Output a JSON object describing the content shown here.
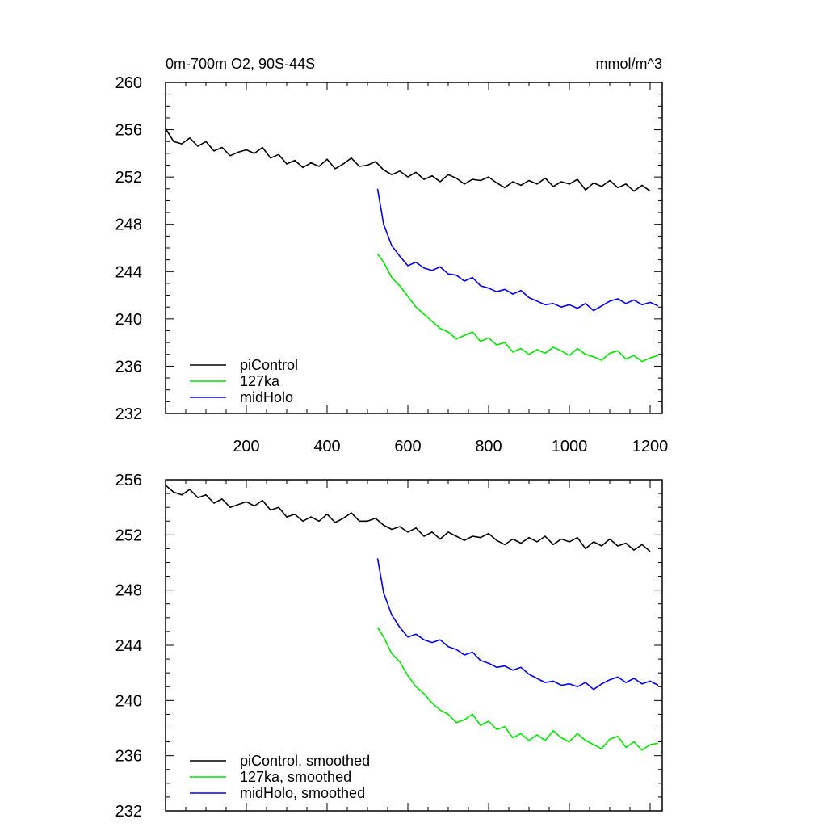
{
  "chart_data": [
    {
      "type": "line",
      "title_left": "0m-700m O2, 90S-44S",
      "title_right": "mmol/m^3",
      "xlabel": "",
      "ylabel": "",
      "xlim": [
        0,
        1230
      ],
      "ylim": [
        232,
        260
      ],
      "x_ticks": [
        200,
        400,
        600,
        800,
        1000,
        1200
      ],
      "x_tick_labels": [
        "200",
        "400",
        "600",
        "800",
        "1000",
        "1200"
      ],
      "y_ticks": [
        232,
        236,
        240,
        244,
        248,
        252,
        256,
        260
      ],
      "y_tick_labels": [
        "232",
        "236",
        "240",
        "244",
        "248",
        "252",
        "256",
        "260"
      ],
      "grid": false,
      "legend_position": "bottom-left",
      "series": [
        {
          "name": "piControl",
          "color": "#000000",
          "x": [
            0,
            20,
            40,
            60,
            80,
            100,
            120,
            140,
            160,
            180,
            200,
            220,
            240,
            260,
            280,
            300,
            320,
            340,
            360,
            380,
            400,
            420,
            440,
            460,
            480,
            500,
            520,
            540,
            560,
            580,
            600,
            620,
            640,
            660,
            680,
            700,
            720,
            740,
            760,
            780,
            800,
            820,
            840,
            860,
            880,
            900,
            920,
            940,
            960,
            980,
            1000,
            1020,
            1040,
            1060,
            1080,
            1100,
            1120,
            1140,
            1160,
            1180,
            1200
          ],
          "values": [
            256.1,
            255.0,
            254.8,
            255.3,
            254.6,
            255.0,
            254.2,
            254.5,
            253.8,
            254.1,
            254.3,
            254.0,
            254.5,
            253.6,
            253.9,
            253.1,
            253.4,
            252.8,
            253.2,
            252.9,
            253.5,
            252.7,
            253.1,
            253.6,
            252.9,
            253.0,
            253.3,
            252.6,
            252.2,
            252.5,
            252.0,
            252.4,
            251.8,
            252.1,
            251.6,
            252.2,
            251.9,
            251.4,
            251.8,
            251.7,
            252.0,
            251.5,
            251.1,
            251.6,
            251.3,
            251.7,
            251.4,
            251.9,
            251.2,
            251.6,
            251.4,
            251.8,
            250.9,
            251.5,
            251.2,
            251.7,
            251.1,
            251.4,
            250.8,
            251.3,
            250.8
          ]
        },
        {
          "name": "127ka",
          "color": "#00e600",
          "x": [
            525,
            540,
            560,
            580,
            600,
            620,
            640,
            660,
            680,
            700,
            720,
            740,
            760,
            780,
            800,
            820,
            840,
            860,
            880,
            900,
            920,
            940,
            960,
            980,
            1000,
            1020,
            1040,
            1060,
            1080,
            1100,
            1120,
            1140,
            1160,
            1180,
            1200,
            1220
          ],
          "values": [
            245.5,
            244.8,
            243.5,
            242.8,
            241.9,
            241.0,
            240.4,
            239.8,
            239.2,
            238.9,
            238.3,
            238.6,
            238.9,
            238.1,
            238.4,
            237.8,
            238.0,
            237.2,
            237.5,
            237.0,
            237.4,
            237.1,
            237.6,
            237.3,
            236.9,
            237.5,
            237.0,
            236.8,
            236.5,
            237.1,
            237.3,
            236.6,
            236.9,
            236.4,
            236.7,
            236.9
          ]
        },
        {
          "name": "midHolo",
          "color": "#0000ee",
          "x": [
            525,
            540,
            560,
            580,
            600,
            620,
            640,
            660,
            680,
            700,
            720,
            740,
            760,
            780,
            800,
            820,
            840,
            860,
            880,
            900,
            920,
            940,
            960,
            980,
            1000,
            1020,
            1040,
            1060,
            1080,
            1100,
            1120,
            1140,
            1160,
            1180,
            1200,
            1220
          ],
          "values": [
            251.0,
            248.0,
            246.2,
            245.3,
            244.5,
            244.8,
            244.3,
            244.1,
            244.4,
            243.8,
            243.7,
            243.2,
            243.5,
            242.8,
            242.6,
            242.3,
            242.5,
            242.1,
            242.4,
            241.8,
            241.5,
            241.2,
            241.3,
            241.0,
            241.2,
            240.9,
            241.3,
            240.7,
            241.1,
            241.5,
            241.7,
            241.3,
            241.6,
            241.2,
            241.4,
            241.1
          ]
        }
      ]
    },
    {
      "type": "line",
      "title_left": "",
      "title_right": "",
      "xlabel": "",
      "ylabel": "",
      "xlim": [
        0,
        1230
      ],
      "ylim": [
        232,
        256
      ],
      "x_ticks": [
        200,
        400,
        600,
        800,
        1000,
        1200
      ],
      "x_tick_labels": [],
      "y_ticks": [
        232,
        236,
        240,
        244,
        248,
        252,
        256
      ],
      "y_tick_labels": [
        "232",
        "236",
        "240",
        "244",
        "248",
        "252",
        "256"
      ],
      "grid": false,
      "legend_position": "bottom-left",
      "series": [
        {
          "name": "piControl, smoothed",
          "color": "#000000",
          "x": [
            0,
            20,
            40,
            60,
            80,
            100,
            120,
            140,
            160,
            180,
            200,
            220,
            240,
            260,
            280,
            300,
            320,
            340,
            360,
            380,
            400,
            420,
            440,
            460,
            480,
            500,
            520,
            540,
            560,
            580,
            600,
            620,
            640,
            660,
            680,
            700,
            720,
            740,
            760,
            780,
            800,
            820,
            840,
            860,
            880,
            900,
            920,
            940,
            960,
            980,
            1000,
            1020,
            1040,
            1060,
            1080,
            1100,
            1120,
            1140,
            1160,
            1180,
            1200
          ],
          "values": [
            255.6,
            255.1,
            254.9,
            255.3,
            254.7,
            254.9,
            254.3,
            254.6,
            254.0,
            254.2,
            254.4,
            254.1,
            254.5,
            253.8,
            254.0,
            253.3,
            253.5,
            253.0,
            253.3,
            253.0,
            253.5,
            252.9,
            253.2,
            253.6,
            253.0,
            253.0,
            253.2,
            252.7,
            252.4,
            252.6,
            252.2,
            252.5,
            251.9,
            252.2,
            251.7,
            252.2,
            251.9,
            251.6,
            251.9,
            251.8,
            252.1,
            251.6,
            251.3,
            251.7,
            251.4,
            251.8,
            251.5,
            251.9,
            251.3,
            251.7,
            251.5,
            251.8,
            251.0,
            251.5,
            251.2,
            251.7,
            251.2,
            251.4,
            250.9,
            251.3,
            250.8
          ]
        },
        {
          "name": "127ka, smoothed",
          "color": "#00e600",
          "x": [
            525,
            540,
            560,
            580,
            600,
            620,
            640,
            660,
            680,
            700,
            720,
            740,
            760,
            780,
            800,
            820,
            840,
            860,
            880,
            900,
            920,
            940,
            960,
            980,
            1000,
            1020,
            1040,
            1060,
            1080,
            1100,
            1120,
            1140,
            1160,
            1180,
            1200,
            1220
          ],
          "values": [
            245.3,
            244.6,
            243.4,
            242.8,
            241.8,
            241.0,
            240.5,
            239.8,
            239.3,
            239.0,
            238.4,
            238.6,
            239.0,
            238.2,
            238.5,
            237.9,
            238.1,
            237.3,
            237.6,
            237.1,
            237.5,
            237.1,
            237.8,
            237.3,
            237.0,
            237.6,
            237.1,
            236.8,
            236.5,
            237.2,
            237.4,
            236.6,
            237.0,
            236.4,
            236.8,
            236.9
          ]
        },
        {
          "name": "midHolo, smoothed",
          "color": "#0000ee",
          "x": [
            525,
            540,
            560,
            580,
            600,
            620,
            640,
            660,
            680,
            700,
            720,
            740,
            760,
            780,
            800,
            820,
            840,
            860,
            880,
            900,
            920,
            940,
            960,
            980,
            1000,
            1020,
            1040,
            1060,
            1080,
            1100,
            1120,
            1140,
            1160,
            1180,
            1200,
            1220
          ],
          "values": [
            250.3,
            247.8,
            246.2,
            245.3,
            244.6,
            244.8,
            244.4,
            244.2,
            244.4,
            243.9,
            243.7,
            243.3,
            243.5,
            242.9,
            242.7,
            242.4,
            242.5,
            242.2,
            242.4,
            241.9,
            241.6,
            241.3,
            241.4,
            241.1,
            241.2,
            241.0,
            241.3,
            240.8,
            241.2,
            241.5,
            241.7,
            241.3,
            241.6,
            241.2,
            241.4,
            241.1
          ]
        }
      ]
    }
  ]
}
